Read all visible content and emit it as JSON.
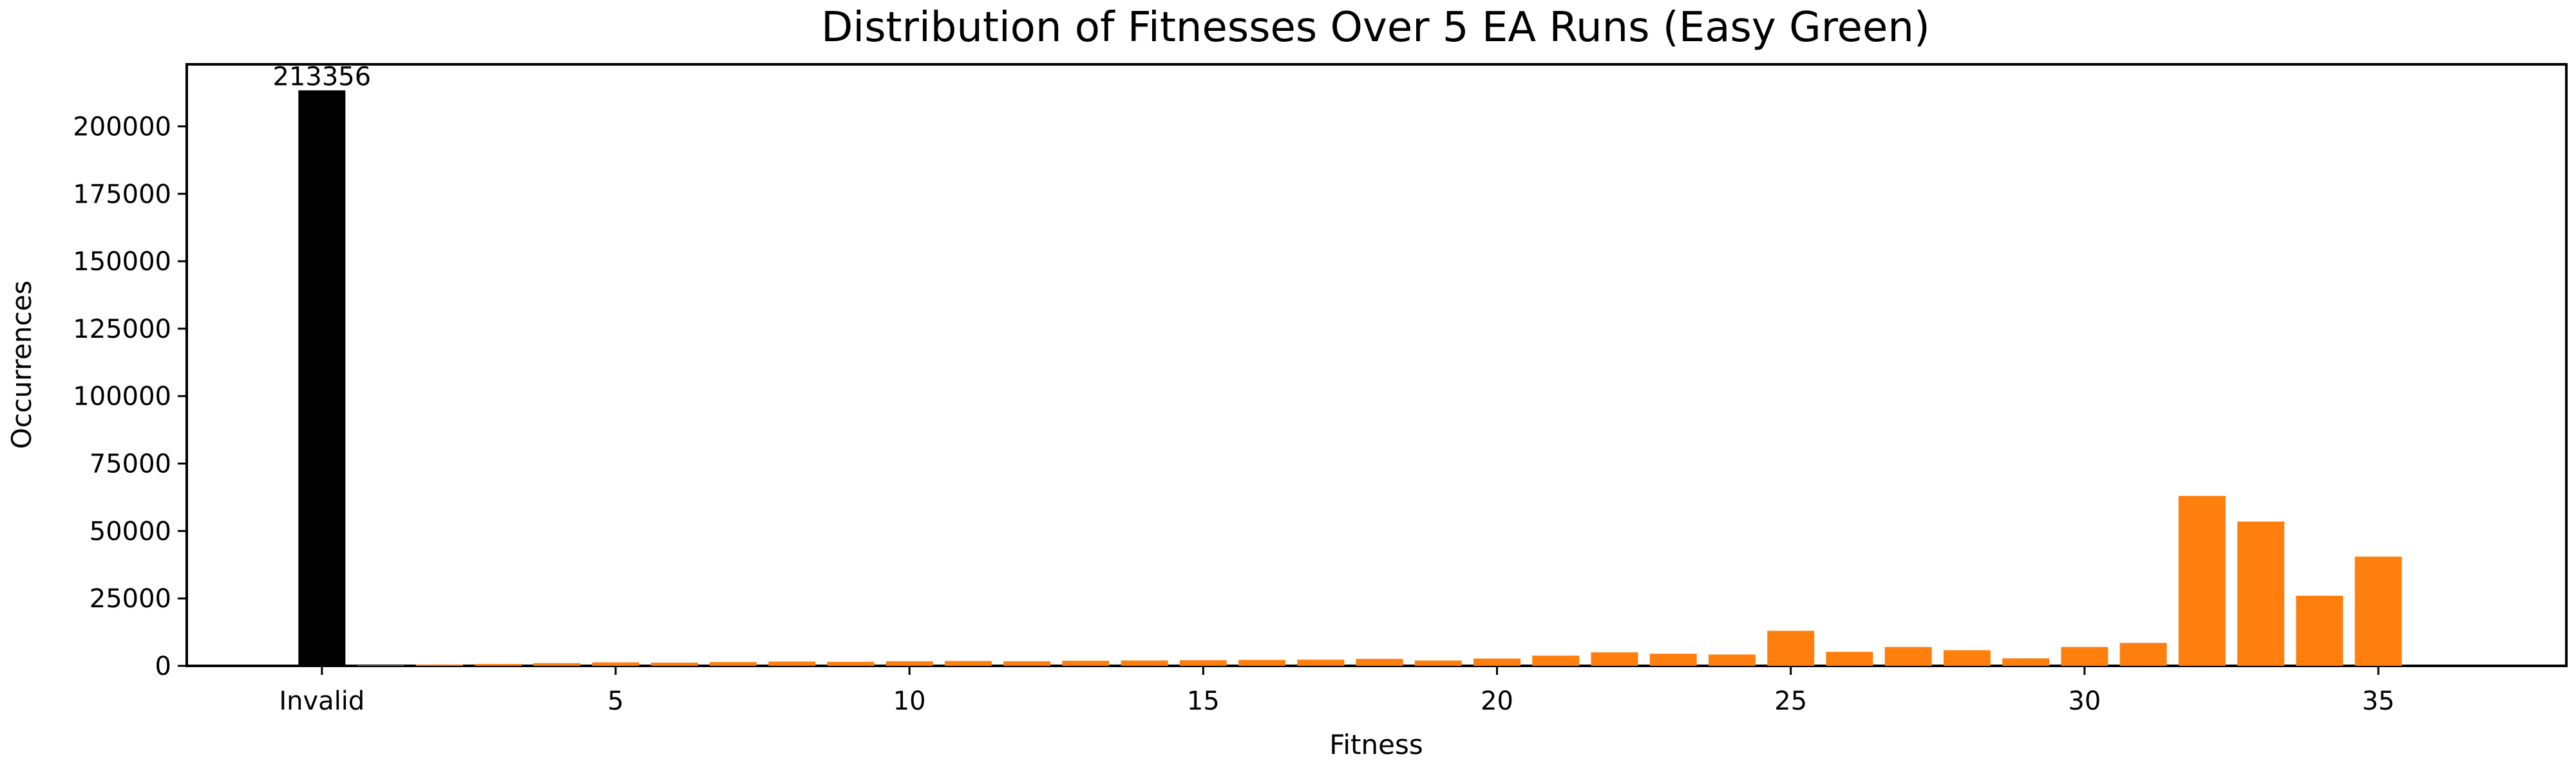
{
  "chart_data": {
    "type": "bar",
    "title": "Distribution of Fitnesses Over 5 EA Runs (Easy Green)",
    "xlabel": "Fitness",
    "ylabel": "Occurrences",
    "ylim": [
      0,
      223000
    ],
    "xlim": [
      -2.3,
      38.2
    ],
    "x_ticks": [
      {
        "value": 0,
        "label": "Invalid"
      },
      {
        "value": 5,
        "label": "5"
      },
      {
        "value": 10,
        "label": "10"
      },
      {
        "value": 15,
        "label": "15"
      },
      {
        "value": 20,
        "label": "20"
      },
      {
        "value": 25,
        "label": "25"
      },
      {
        "value": 30,
        "label": "30"
      },
      {
        "value": 35,
        "label": "35"
      }
    ],
    "y_ticks": [
      0,
      25000,
      50000,
      75000,
      100000,
      125000,
      150000,
      175000,
      200000
    ],
    "grid": false,
    "series": [
      {
        "color": "#000000",
        "points": [
          {
            "x": 0,
            "y": 213356
          }
        ]
      },
      {
        "color": "#ff7f0e",
        "points": [
          {
            "x": 1,
            "y": 200
          },
          {
            "x": 2,
            "y": 500
          },
          {
            "x": 3,
            "y": 700
          },
          {
            "x": 4,
            "y": 1000
          },
          {
            "x": 5,
            "y": 1300
          },
          {
            "x": 6,
            "y": 1200
          },
          {
            "x": 7,
            "y": 1400
          },
          {
            "x": 8,
            "y": 1600
          },
          {
            "x": 9,
            "y": 1500
          },
          {
            "x": 10,
            "y": 1700
          },
          {
            "x": 11,
            "y": 1800
          },
          {
            "x": 12,
            "y": 1700
          },
          {
            "x": 13,
            "y": 1900
          },
          {
            "x": 14,
            "y": 2000
          },
          {
            "x": 15,
            "y": 2100
          },
          {
            "x": 16,
            "y": 2200
          },
          {
            "x": 17,
            "y": 2300
          },
          {
            "x": 18,
            "y": 2600
          },
          {
            "x": 19,
            "y": 2000
          },
          {
            "x": 20,
            "y": 2700
          },
          {
            "x": 21,
            "y": 3800
          },
          {
            "x": 22,
            "y": 5000
          },
          {
            "x": 23,
            "y": 4500
          },
          {
            "x": 24,
            "y": 4200
          },
          {
            "x": 25,
            "y": 13000
          },
          {
            "x": 26,
            "y": 5200
          },
          {
            "x": 27,
            "y": 7000
          },
          {
            "x": 28,
            "y": 5800
          },
          {
            "x": 29,
            "y": 2800
          },
          {
            "x": 30,
            "y": 7000
          },
          {
            "x": 31,
            "y": 8500
          },
          {
            "x": 32,
            "y": 63000
          },
          {
            "x": 33,
            "y": 53500
          },
          {
            "x": 34,
            "y": 26000
          },
          {
            "x": 35,
            "y": 40500
          }
        ]
      }
    ],
    "annotations": [
      {
        "x": 0,
        "y": 213356,
        "text": "213356"
      }
    ]
  }
}
